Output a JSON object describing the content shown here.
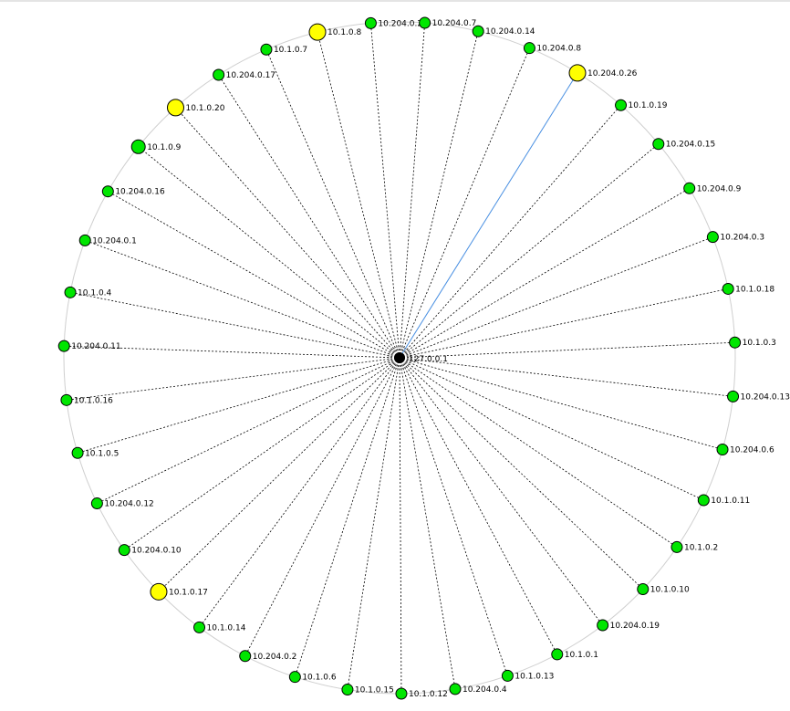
{
  "center": {
    "label": "127.0.0.1",
    "color": "#000000"
  },
  "colors": {
    "normal": "#00e600",
    "highlight": "#ffff00",
    "active_edge": "#4a90e2"
  },
  "nodes": [
    {
      "label": "10.204.0.26",
      "highlight": true,
      "active": true
    },
    {
      "label": "10.1.0.19"
    },
    {
      "label": "10.204.0.15"
    },
    {
      "label": "10.204.0.9"
    },
    {
      "label": "10.204.0.3"
    },
    {
      "label": "10.1.0.18"
    },
    {
      "label": "10.1.0.3"
    },
    {
      "label": "10.204.0.13"
    },
    {
      "label": "10.204.0.6"
    },
    {
      "label": "10.1.0.11"
    },
    {
      "label": "10.1.0.2"
    },
    {
      "label": "10.1.0.10"
    },
    {
      "label": "10.204.0.19"
    },
    {
      "label": "10.1.0.1"
    },
    {
      "label": "10.1.0.13"
    },
    {
      "label": "10.204.0.4"
    },
    {
      "label": "10.1.0.12"
    },
    {
      "label": "10.1.0.15"
    },
    {
      "label": "10.1.0.6"
    },
    {
      "label": "10.204.0.2"
    },
    {
      "label": "10.1.0.14"
    },
    {
      "label": "10.1.0.17",
      "highlight": true
    },
    {
      "label": "10.204.0.10"
    },
    {
      "label": "10.204.0.12"
    },
    {
      "label": "10.1.0.5"
    },
    {
      "label": "10.1.0.16"
    },
    {
      "label": "10.204.0.11"
    },
    {
      "label": "10.1.0.4"
    },
    {
      "label": "10.204.0.1"
    },
    {
      "label": "10.204.0.16"
    },
    {
      "label": "10.1.0.9",
      "large": true
    },
    {
      "label": "10.1.0.20",
      "highlight": true
    },
    {
      "label": "10.204.0.17"
    },
    {
      "label": "10.1.0.7"
    },
    {
      "label": "10.1.0.8",
      "highlight": true
    },
    {
      "label": "10.204.0.20"
    },
    {
      "label": "10.204.0.7"
    },
    {
      "label": "10.204.0.14"
    },
    {
      "label": "10.204.0.8"
    }
  ]
}
